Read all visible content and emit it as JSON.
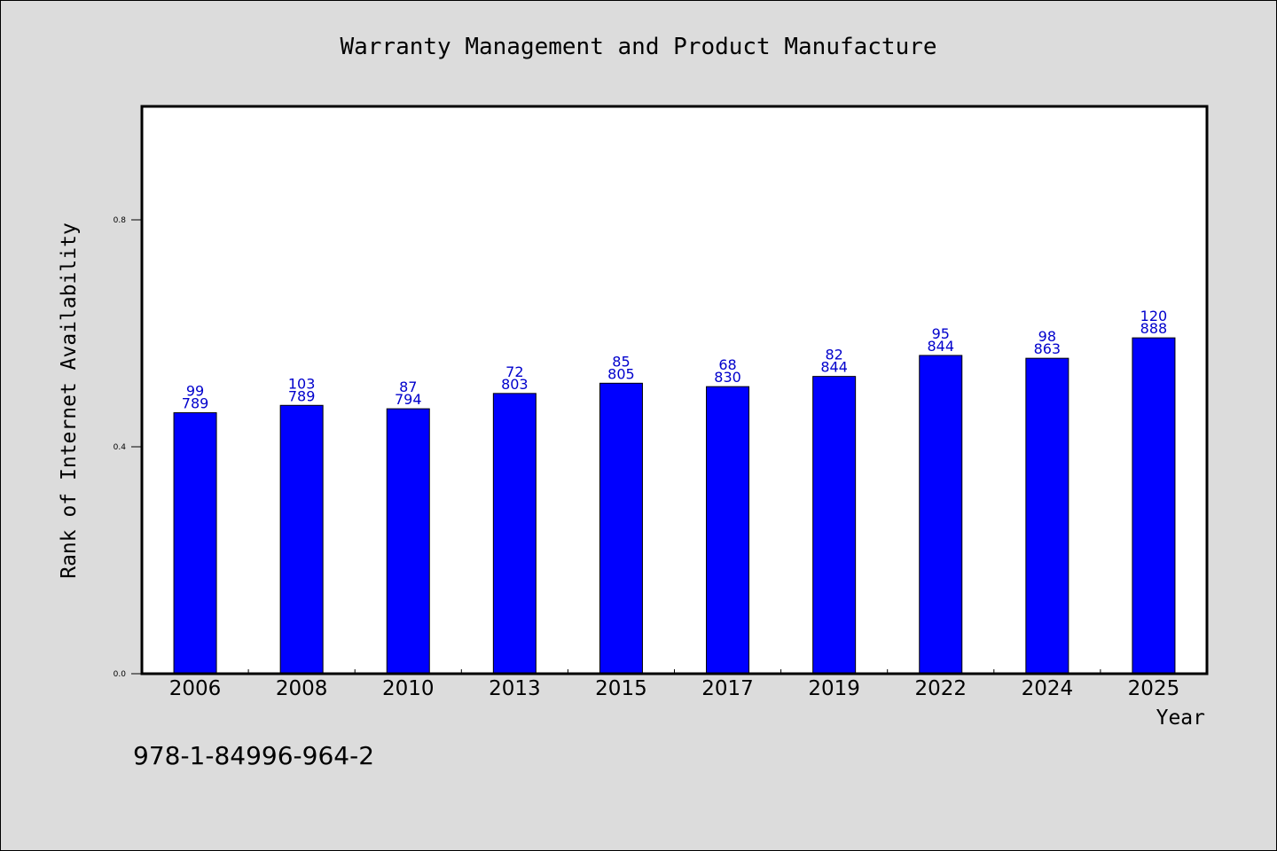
{
  "chart_data": {
    "type": "bar",
    "title": "Warranty Management and Product Manufacture",
    "xlabel": "Year",
    "ylabel": "Rank of Internet Availability",
    "categories": [
      "2006",
      "2008",
      "2010",
      "2013",
      "2015",
      "2017",
      "2019",
      "2022",
      "2024",
      "2025"
    ],
    "values": [
      0.46,
      0.473,
      0.467,
      0.494,
      0.512,
      0.506,
      0.524,
      0.561,
      0.556,
      0.592
    ],
    "labels_top": [
      "99",
      "103",
      "87",
      "72",
      "85",
      "68",
      "82",
      "95",
      "98",
      "120"
    ],
    "labels_bottom": [
      "789",
      "789",
      "794",
      "803",
      "805",
      "830",
      "844",
      "844",
      "863",
      "888"
    ],
    "ylim": [
      0.0,
      1.0
    ],
    "yticks": [
      {
        "value": 0.0,
        "label": "0.0"
      },
      {
        "value": 0.4,
        "label": "0.4"
      },
      {
        "value": 0.8,
        "label": "0.8"
      }
    ],
    "bar_color": "#0000ff",
    "label_color": "#0000cc",
    "grid": false
  },
  "footer": {
    "isbn": "978-1-84996-964-2"
  }
}
